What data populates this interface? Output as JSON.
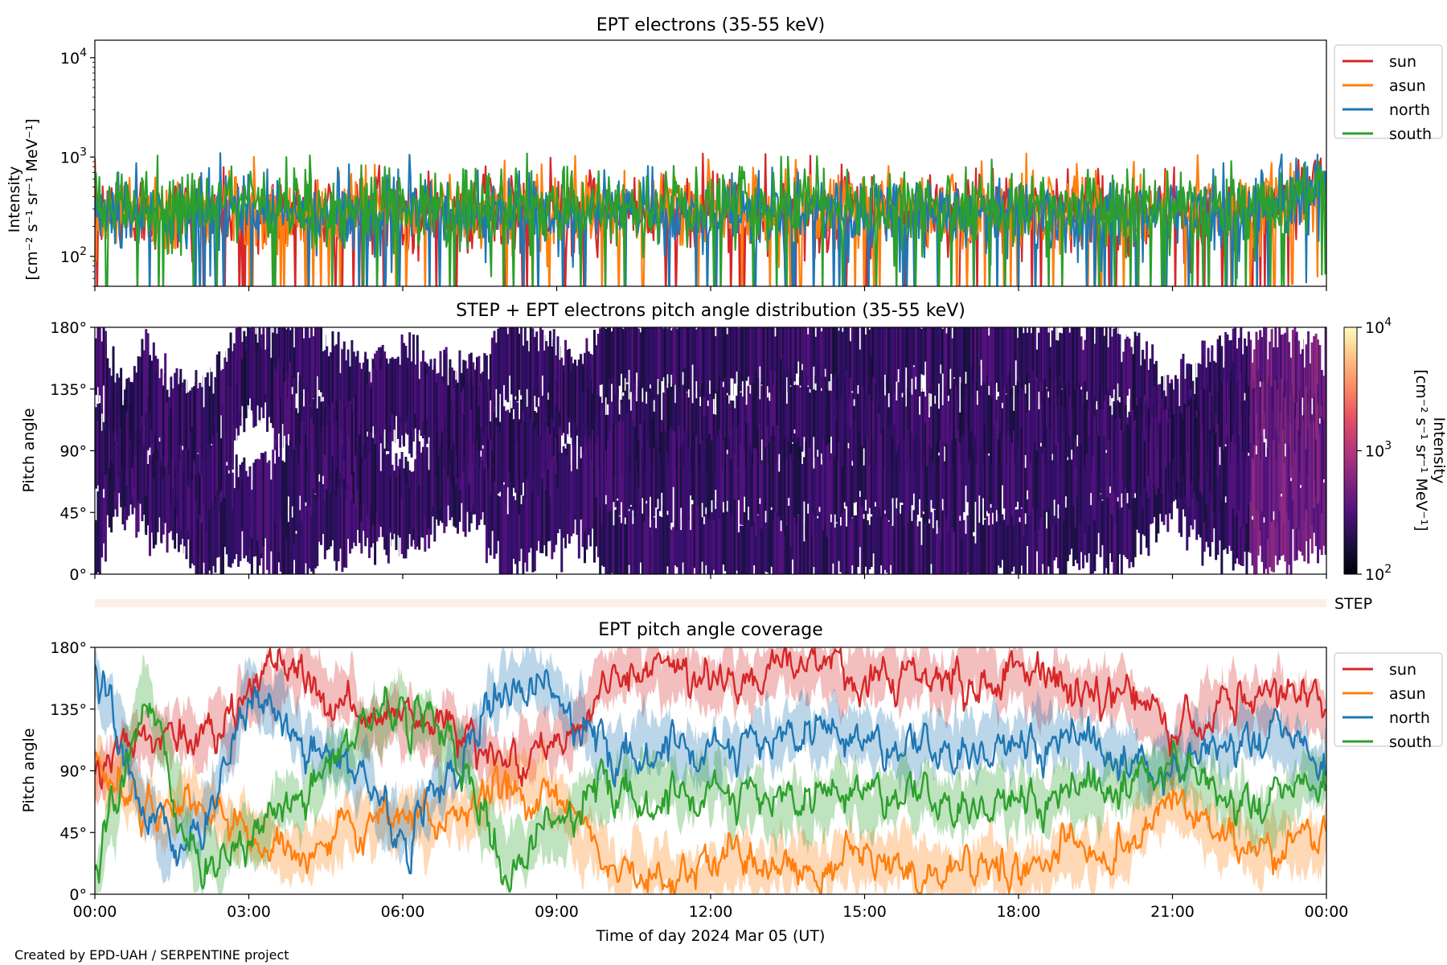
{
  "footer": "Created by EPD-UAH / SERPENTINE project",
  "colors": {
    "sun": "#d62728",
    "asun": "#ff7f0e",
    "north": "#1f77b4",
    "south": "#2ca02c"
  },
  "chart_data": [
    {
      "type": "line",
      "title": "EPT electrons (35-55 keV)",
      "ylabel_line1": "Intensity",
      "ylabel_line2": "[cm⁻² s⁻¹ sr⁻¹ MeV⁻¹]",
      "yscale": "log",
      "ylim": [
        50,
        15000
      ],
      "y_ticks": [
        {
          "value": 100,
          "base": "10",
          "exp": "2"
        },
        {
          "value": 1000,
          "base": "10",
          "exp": "3"
        },
        {
          "value": 10000,
          "base": "10",
          "exp": "4"
        }
      ],
      "xlim_hours": [
        0,
        24
      ],
      "legend_position": "outside-right",
      "series": [
        {
          "name": "sun",
          "color": "#d62728",
          "typical": 280,
          "late_typical": 550
        },
        {
          "name": "asun",
          "color": "#ff7f0e",
          "typical": 300,
          "late_typical": 550
        },
        {
          "name": "north",
          "color": "#1f77b4",
          "typical": 270,
          "late_typical": 520
        },
        {
          "name": "south",
          "color": "#2ca02c",
          "typical": 320,
          "late_typical": 560
        }
      ]
    },
    {
      "type": "heatmap",
      "title": "STEP + EPT electrons pitch angle distribution (35-55 keV)",
      "ylabel": "Pitch angle",
      "ylim": [
        0,
        180
      ],
      "y_ticks": [
        "0°",
        "45°",
        "90°",
        "135°",
        "180°"
      ],
      "colorbar_label_line1": "Intensity",
      "colorbar_label_line2": "[cm⁻² s⁻¹ sr⁻¹ MeV⁻¹]",
      "colorbar_scale": "log",
      "colorbar_range": [
        100,
        10000
      ],
      "colorbar_ticks": [
        {
          "value": 100,
          "base": "10",
          "exp": "2"
        },
        {
          "value": 1000,
          "base": "10",
          "exp": "3"
        },
        {
          "value": 10000,
          "base": "10",
          "exp": "4"
        }
      ],
      "colormap": "magma"
    },
    {
      "type": "bar",
      "label": "STEP",
      "color": "#fdeee8"
    },
    {
      "type": "line",
      "title": "EPT pitch angle coverage",
      "ylabel": "Pitch angle",
      "ylim": [
        0,
        180
      ],
      "y_ticks": [
        "0°",
        "45°",
        "90°",
        "135°",
        "180°"
      ],
      "xlabel": "Time of day 2024 Mar 05 (UT)",
      "x_ticks": [
        "00:00",
        "03:00",
        "06:00",
        "09:00",
        "12:00",
        "15:00",
        "18:00",
        "21:00",
        "00:00"
      ],
      "xlim_hours": [
        0,
        24
      ],
      "legend_position": "outside-right",
      "series": [
        {
          "name": "sun",
          "color": "#d62728",
          "keypoints": [
            [
              0,
              85
            ],
            [
              1,
              120
            ],
            [
              2,
              110
            ],
            [
              3,
              150
            ],
            [
              4,
              160
            ],
            [
              5,
              130
            ],
            [
              6,
              125
            ],
            [
              7,
              120
            ],
            [
              8,
              95
            ],
            [
              9,
              110
            ],
            [
              10,
              155
            ],
            [
              11,
              165
            ],
            [
              12,
              160
            ],
            [
              13,
              160
            ],
            [
              14,
              165
            ],
            [
              15,
              155
            ],
            [
              16,
              165
            ],
            [
              17,
              160
            ],
            [
              18,
              160
            ],
            [
              19,
              150
            ],
            [
              20,
              150
            ],
            [
              21,
              110
            ],
            [
              22,
              140
            ],
            [
              23,
              150
            ],
            [
              24,
              135
            ]
          ]
        },
        {
          "name": "asun",
          "color": "#ff7f0e",
          "keypoints": [
            [
              0,
              95
            ],
            [
              1,
              60
            ],
            [
              2,
              70
            ],
            [
              3,
              40
            ],
            [
              4,
              25
            ],
            [
              5,
              50
            ],
            [
              6,
              55
            ],
            [
              7,
              60
            ],
            [
              8,
              85
            ],
            [
              9,
              70
            ],
            [
              10,
              25
            ],
            [
              11,
              15
            ],
            [
              12,
              20
            ],
            [
              13,
              20
            ],
            [
              14,
              15
            ],
            [
              15,
              25
            ],
            [
              16,
              15
            ],
            [
              17,
              20
            ],
            [
              18,
              20
            ],
            [
              19,
              30
            ],
            [
              20,
              30
            ],
            [
              21,
              70
            ],
            [
              22,
              40
            ],
            [
              23,
              30
            ],
            [
              24,
              45
            ]
          ]
        },
        {
          "name": "north",
          "color": "#1f77b4",
          "keypoints": [
            [
              0,
              165
            ],
            [
              1,
              60
            ],
            [
              2,
              40
            ],
            [
              3,
              150
            ],
            [
              4,
              110
            ],
            [
              5,
              90
            ],
            [
              6,
              40
            ],
            [
              7,
              90
            ],
            [
              8,
              160
            ],
            [
              9,
              140
            ],
            [
              10,
              100
            ],
            [
              11,
              110
            ],
            [
              12,
              105
            ],
            [
              13,
              110
            ],
            [
              14,
              115
            ],
            [
              15,
              110
            ],
            [
              16,
              105
            ],
            [
              17,
              110
            ],
            [
              18,
              110
            ],
            [
              19,
              110
            ],
            [
              20,
              100
            ],
            [
              21,
              90
            ],
            [
              22,
              110
            ],
            [
              23,
              115
            ],
            [
              24,
              95
            ]
          ]
        },
        {
          "name": "south",
          "color": "#2ca02c",
          "keypoints": [
            [
              0,
              15
            ],
            [
              1,
              150
            ],
            [
              2,
              20
            ],
            [
              3,
              45
            ],
            [
              4,
              70
            ],
            [
              5,
              110
            ],
            [
              6,
              140
            ],
            [
              7,
              110
            ],
            [
              8,
              20
            ],
            [
              9,
              50
            ],
            [
              10,
              80
            ],
            [
              11,
              70
            ],
            [
              12,
              75
            ],
            [
              13,
              70
            ],
            [
              14,
              65
            ],
            [
              15,
              75
            ],
            [
              16,
              70
            ],
            [
              17,
              70
            ],
            [
              18,
              70
            ],
            [
              19,
              70
            ],
            [
              20,
              80
            ],
            [
              21,
              100
            ],
            [
              22,
              70
            ],
            [
              23,
              65
            ],
            [
              24,
              85
            ]
          ]
        }
      ]
    }
  ]
}
